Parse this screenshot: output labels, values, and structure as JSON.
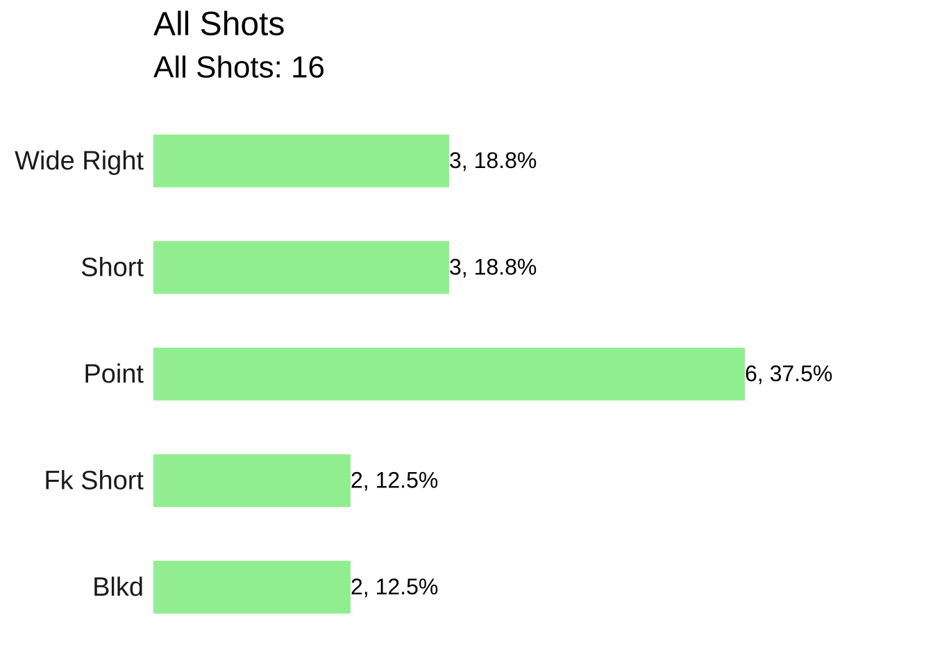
{
  "chart_data": {
    "type": "bar",
    "orientation": "horizontal",
    "title": "All Shots",
    "subtitle": "All Shots: 16",
    "categories": [
      "Wide Right",
      "Short",
      "Point",
      "Fk Short",
      "Blkd"
    ],
    "values": [
      3,
      3,
      6,
      2,
      2
    ],
    "value_labels": [
      "3, 18.8%",
      "3, 18.8%",
      "6, 37.5%",
      "2, 12.5%",
      "2, 12.5%"
    ],
    "color": "#90ee90"
  }
}
